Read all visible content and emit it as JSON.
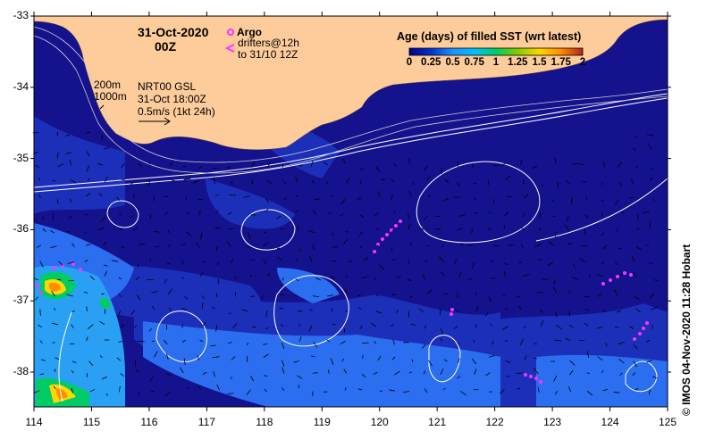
{
  "date_label": "31-Oct-2020",
  "time_label": "00Z",
  "legend": {
    "argo_label": "Argo",
    "drifters_label": "drifters@12h",
    "drifters_until": "to 31/10 12Z",
    "argo_color": "#ff33ff",
    "drifter_color": "#ff33ff"
  },
  "contours": {
    "c200": "200m",
    "c1000": "1000m"
  },
  "product": {
    "name": "NRT00 GSL",
    "time": "31-Oct 18:00Z",
    "scale": "0.5m/s (1kt 24h)"
  },
  "colorbar": {
    "title": "Age (days) of filled SST (wrt latest)",
    "ticks": [
      "0",
      "0.25",
      "0.5",
      "0.75",
      "1",
      "1.25",
      "1.5",
      "1.75",
      "2"
    ],
    "colors": [
      "#00008b",
      "#0033cc",
      "#1e90ff",
      "#00bfff",
      "#00cc66",
      "#7fcc00",
      "#ffd700",
      "#ff8c00",
      "#b22222"
    ]
  },
  "axes": {
    "y_ticks": [
      "-33",
      "-34",
      "-35",
      "-36",
      "-37",
      "-38"
    ],
    "x_ticks": [
      "114",
      "115",
      "116",
      "117",
      "118",
      "119",
      "120",
      "121",
      "122",
      "123",
      "124",
      "125"
    ]
  },
  "credit": "© IMOS 04-Nov-2020 11:28 Hobart",
  "colors": {
    "ocean_deep": "#15128e",
    "ocean_mid": "#1c2fb8",
    "ocean_light": "#2c6ef0",
    "shelf": "#2aa0f5",
    "land": "#fdcc9a"
  }
}
